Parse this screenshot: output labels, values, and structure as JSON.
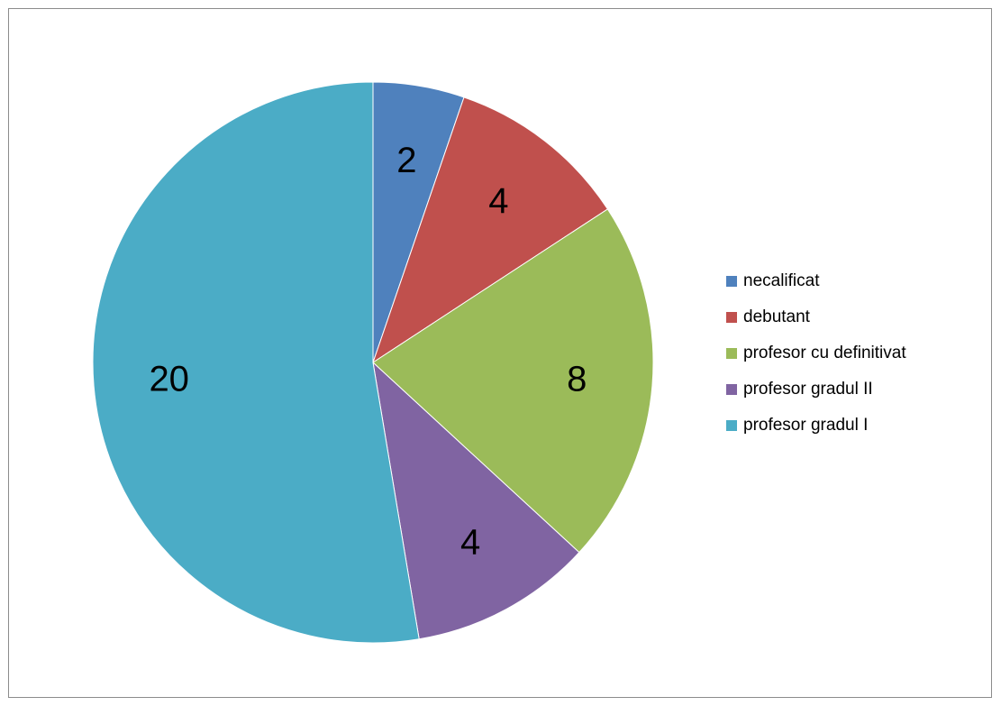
{
  "chart_data": {
    "type": "pie",
    "title": "",
    "categories": [
      "necalificat",
      "debutant",
      "profesor cu definitivat",
      "profesor gradul II",
      "profesor gradul I"
    ],
    "values": [
      2,
      4,
      8,
      4,
      20
    ],
    "data_labels": [
      "2",
      "4",
      "8",
      "4",
      "20"
    ],
    "colors": [
      "#4f81bd",
      "#c0504d",
      "#9bbb59",
      "#8064a2",
      "#4bacc6"
    ],
    "start_angle_deg": 0,
    "direction": "clockwise",
    "legend_position": "right"
  }
}
